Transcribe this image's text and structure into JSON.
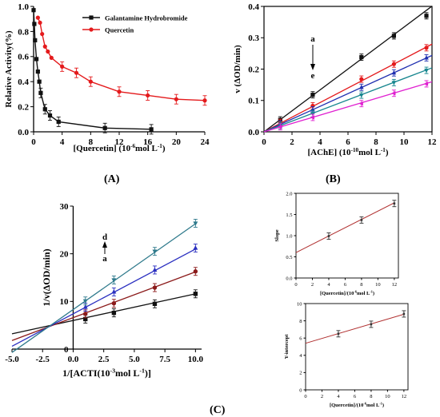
{
  "panel_labels": {
    "A": "(A)",
    "B": "(B)",
    "C": "(C)"
  },
  "colors": {
    "black": "#111111",
    "red": "#e41a1c",
    "blue": "#1f2fb0",
    "teal": "#17868f",
    "magenta": "#e020d0",
    "darkred": "#8b1a1a",
    "brown": "#b5651d",
    "navy": "#2a2fc0",
    "steel": "#2f7a8c",
    "fit": "#b03030"
  },
  "chart_data": [
    {
      "id": "A",
      "type": "line",
      "xlabel": "[Quercetin] (10",
      "xlabel_sup": "-6",
      "xlabel_tail": "mol L",
      "xlabel_sup2": "-1",
      "xlabel_end": ")",
      "ylabel": "Relative Activity(%)",
      "xlim": [
        0,
        24
      ],
      "ylim": [
        0,
        1.0
      ],
      "xticks": [
        "0",
        "4",
        "8",
        "12",
        "16",
        "20",
        "24"
      ],
      "yticks": [
        "0.0",
        "0.2",
        "0.4",
        "0.6",
        "0.8",
        "1.0"
      ],
      "legend": [
        "Galantamine Hydrobromide",
        "Quercetin"
      ],
      "legend_position": "top-right",
      "series": [
        {
          "name": "Galantamine Hydrobromide",
          "color": "#111111",
          "marker": "square",
          "x": [
            0.0,
            0.1,
            0.2,
            0.4,
            0.6,
            0.8,
            1.0,
            1.6,
            2.3,
            3.5,
            10.0,
            16.5
          ],
          "y": [
            0.97,
            0.86,
            0.73,
            0.58,
            0.48,
            0.4,
            0.31,
            0.18,
            0.13,
            0.08,
            0.03,
            0.02
          ]
        },
        {
          "name": "Quercetin",
          "color": "#e41a1c",
          "marker": "circle",
          "x": [
            0.6,
            0.9,
            1.2,
            1.6,
            2.0,
            2.5,
            4.0,
            6.0,
            8.0,
            12.0,
            16.0,
            20.0,
            24.0
          ],
          "y": [
            0.91,
            0.87,
            0.78,
            0.68,
            0.64,
            0.59,
            0.52,
            0.47,
            0.4,
            0.32,
            0.29,
            0.26,
            0.25
          ]
        }
      ]
    },
    {
      "id": "B",
      "type": "line",
      "xlabel": "[AChE] (10",
      "xlabel_sup": "-10",
      "xlabel_tail": "mol L",
      "xlabel_sup2": "-1",
      "xlabel_end": ")",
      "ylabel": "v (ΔOD/min)",
      "xlim": [
        0,
        12
      ],
      "ylim": [
        0,
        0.4
      ],
      "xticks": [
        "0",
        "2",
        "4",
        "6",
        "8",
        "10",
        "12"
      ],
      "yticks": [
        "0.0",
        "0.1",
        "0.2",
        "0.3",
        "0.4"
      ],
      "annotation_top": "a",
      "annotation_bottom": "e",
      "x": [
        1.16,
        3.48,
        6.96,
        9.28,
        11.6
      ],
      "series": [
        {
          "color": "#111111",
          "marker": "square",
          "slope": 0.0334,
          "y": [
            0.038,
            0.118,
            0.238,
            0.306,
            0.37
          ]
        },
        {
          "color": "#e41a1c",
          "marker": "circle",
          "slope": 0.0233,
          "y": [
            0.03,
            0.083,
            0.168,
            0.216,
            0.268
          ]
        },
        {
          "color": "#1f2fb0",
          "marker": "triangle-up",
          "slope": 0.0203,
          "y": [
            0.025,
            0.07,
            0.142,
            0.188,
            0.236
          ]
        },
        {
          "color": "#17868f",
          "marker": "triangle-down",
          "slope": 0.017,
          "y": [
            0.02,
            0.058,
            0.117,
            0.157,
            0.196
          ]
        },
        {
          "color": "#e020d0",
          "marker": "triangle-left",
          "slope": 0.0133,
          "y": [
            0.016,
            0.046,
            0.09,
            0.123,
            0.153
          ]
        }
      ]
    },
    {
      "id": "C-main",
      "type": "line",
      "xlabel": "1/[ACTI(10",
      "xlabel_sup": "-3",
      "xlabel_tail": "mol L",
      "xlabel_sup2": "-1",
      "xlabel_end": ")]",
      "ylabel": "1/v(ΔOD/min)",
      "xlim": [
        -5.0,
        10.5
      ],
      "ylim": [
        0,
        30
      ],
      "xticks": [
        "-5.0",
        "-2.5",
        "0.0",
        "2.5",
        "5.0",
        "7.5",
        "10.0"
      ],
      "yticks": [
        "0",
        "10",
        "20",
        "30"
      ],
      "annotation_top": "d",
      "annotation_bottom": "a",
      "x": [
        1.0,
        3.33,
        6.67,
        10.0
      ],
      "series": [
        {
          "color": "#111111",
          "marker": "square",
          "fit": [
            0.56,
            6.0
          ],
          "y": [
            6.3,
            7.6,
            9.5,
            11.6
          ]
        },
        {
          "color": "#8b1a1a",
          "marker": "circle",
          "fit": [
            0.96,
            6.6
          ],
          "y": [
            7.4,
            9.6,
            12.9,
            16.3
          ]
        },
        {
          "color": "#2a2fc0",
          "marker": "triangle-up",
          "fit": [
            1.36,
            7.4
          ],
          "y": [
            8.8,
            12.0,
            16.6,
            21.2
          ]
        },
        {
          "color": "#2f7a8c",
          "marker": "triangle-down",
          "fit": [
            1.8,
            8.3
          ],
          "y": [
            10.1,
            14.5,
            20.5,
            26.4
          ]
        }
      ]
    },
    {
      "id": "C-inset-slope",
      "type": "scatter",
      "xlabel": "[Quercetin]/(10",
      "xlabel_sup": "-6",
      "xlabel_tail": "mol L",
      "xlabel_sup2": "-1",
      "xlabel_end": ")",
      "ylabel": "Slope",
      "xlim": [
        0,
        12.5
      ],
      "ylim": [
        0,
        2
      ],
      "xticks": [
        "0",
        "2",
        "4",
        "6",
        "8",
        "10",
        "12"
      ],
      "yticks": [
        "0.0",
        "0.5",
        "1.0",
        "1.5",
        "2.0"
      ],
      "fit": [
        0.098,
        0.6
      ],
      "x": [
        4,
        8,
        12
      ],
      "y": [
        0.99,
        1.37,
        1.76
      ]
    },
    {
      "id": "C-inset-intercept",
      "type": "scatter",
      "xlabel": "[Quercetin]/(10",
      "xlabel_sup": "-6",
      "xlabel_tail": "mol L",
      "xlabel_sup2": "-1",
      "xlabel_end": ")",
      "ylabel": "Y-intercept",
      "xlim": [
        0,
        12.5
      ],
      "ylim": [
        0,
        10
      ],
      "xticks": [
        "0",
        "2",
        "4",
        "6",
        "8",
        "10",
        "12"
      ],
      "yticks": [
        "0",
        "2",
        "4",
        "6",
        "8",
        "10"
      ],
      "fit": [
        0.28,
        5.4
      ],
      "x": [
        4,
        8,
        12
      ],
      "y": [
        6.5,
        7.6,
        8.8
      ]
    }
  ]
}
